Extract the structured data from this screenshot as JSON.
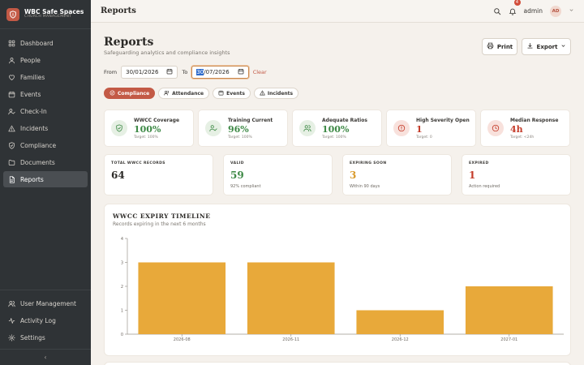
{
  "brand": {
    "name": "WBC Safe Spaces",
    "subtitle": "CHURCH MANAGEMENT"
  },
  "nav": [
    {
      "label": "Dashboard",
      "icon": "grid-icon",
      "active": false
    },
    {
      "label": "People",
      "icon": "person-icon",
      "active": false
    },
    {
      "label": "Families",
      "icon": "heart-icon",
      "active": false
    },
    {
      "label": "Events",
      "icon": "calendar-icon",
      "active": false
    },
    {
      "label": "Check-In",
      "icon": "check-user-icon",
      "active": false
    },
    {
      "label": "Incidents",
      "icon": "warning-icon",
      "active": false
    },
    {
      "label": "Compliance",
      "icon": "shield-check-icon",
      "active": false
    },
    {
      "label": "Documents",
      "icon": "folder-icon",
      "active": false
    },
    {
      "label": "Reports",
      "icon": "report-icon",
      "active": true
    }
  ],
  "nav_bottom": [
    {
      "label": "User Management",
      "icon": "users-icon"
    },
    {
      "label": "Activity Log",
      "icon": "activity-icon"
    },
    {
      "label": "Settings",
      "icon": "gear-icon"
    }
  ],
  "collapse_glyph": "‹",
  "header": {
    "title": "Reports",
    "notification_count": "4",
    "user_name": "admin",
    "user_initials": "AD"
  },
  "page": {
    "title": "Reports",
    "subtitle": "Safeguarding analytics and compliance insights"
  },
  "actions": {
    "print": "Print",
    "export": "Export"
  },
  "filters": {
    "from_label": "From",
    "from_value": "30/01/2026",
    "to_label": "To",
    "to_value_selected": "30",
    "to_value_rest": "/07/2026",
    "clear": "Clear"
  },
  "tabs": [
    {
      "label": "Compliance",
      "active": true
    },
    {
      "label": "Attendance",
      "active": false
    },
    {
      "label": "Events",
      "active": false
    },
    {
      "label": "Incidents",
      "active": false
    }
  ],
  "kpis": [
    {
      "label": "WWCC Coverage",
      "value": "100%",
      "target": "Target: 100%",
      "tone": "green",
      "icon": "shield-check-icon"
    },
    {
      "label": "Training Current",
      "value": "96%",
      "target": "Target: 100%",
      "tone": "green",
      "icon": "check-user-icon"
    },
    {
      "label": "Adequate Ratios",
      "value": "100%",
      "target": "Target: 100%",
      "tone": "green",
      "icon": "users-icon"
    },
    {
      "label": "High Severity Open",
      "value": "1",
      "target": "Target: 0",
      "tone": "red",
      "icon": "alert-circle-icon"
    },
    {
      "label": "Median Response",
      "value": "4h",
      "target": "Target: <24h",
      "tone": "red",
      "icon": "clock-icon"
    }
  ],
  "stats": [
    {
      "label": "Total WWCC Records",
      "value": "64",
      "note": "",
      "tone": "dark"
    },
    {
      "label": "Valid",
      "value": "59",
      "note": "92% compliant",
      "tone": "green"
    },
    {
      "label": "Expiring Soon",
      "value": "3",
      "note": "Within 90 days",
      "tone": "amber"
    },
    {
      "label": "Expired",
      "value": "1",
      "note": "Action required",
      "tone": "red"
    }
  ],
  "colors": {
    "accent": "#c35a46",
    "bar": "#e8a93a",
    "green": "#3f8a47",
    "red": "#c43c2a",
    "amber": "#d99a2b"
  },
  "chart_data": {
    "type": "bar",
    "title": "WWCC EXPIRY TIMELINE",
    "subtitle": "Records expiring in the next 6 months",
    "categories": [
      "2026-08",
      "2026-11",
      "2026-12",
      "2027-01"
    ],
    "values": [
      3,
      3,
      1,
      2
    ],
    "ylim": [
      0,
      4
    ],
    "yticks": [
      0,
      1,
      2,
      3,
      4
    ],
    "grid": false,
    "color": "#e8a93a"
  }
}
